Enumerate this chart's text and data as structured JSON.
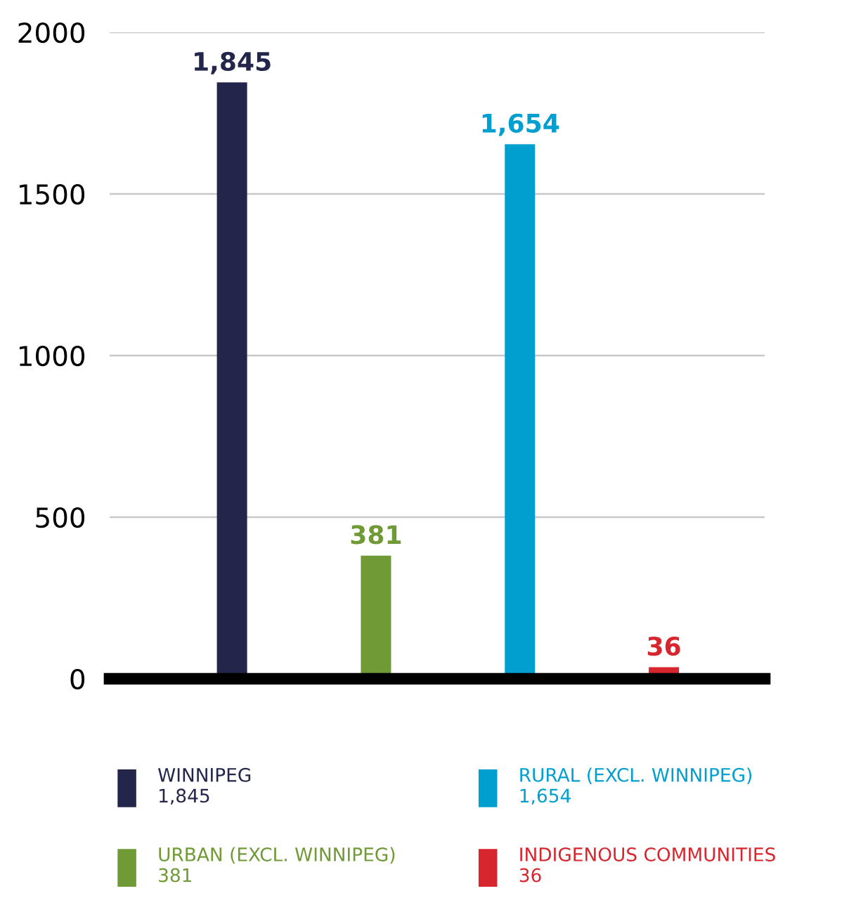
{
  "chart_data": {
    "type": "bar",
    "categories": [
      null,
      null,
      null,
      null
    ],
    "series": [
      {
        "name": "WINNIPEG",
        "color": "#23264a",
        "values": [
          1845,
          null,
          null,
          null
        ],
        "value_labels": [
          "1,845",
          null,
          null,
          null
        ]
      },
      {
        "name": "URBAN (EXCL. WINNIPEG)",
        "color": "#6f9a35",
        "values": [
          null,
          381,
          null,
          null
        ],
        "value_labels": [
          null,
          "381",
          null,
          null
        ]
      },
      {
        "name": "RURAL (EXCL. WINNIPEG)",
        "color": "#009fcf",
        "values": [
          null,
          null,
          1654,
          null
        ],
        "value_labels": [
          null,
          null,
          "1,654",
          null
        ]
      },
      {
        "name": "INDIGENOUS COMMUNITIES",
        "color": "#d7262d",
        "values": [
          null,
          null,
          null,
          36
        ],
        "value_labels": [
          null,
          null,
          null,
          "36"
        ]
      }
    ],
    "ylim": [
      0,
      2000
    ],
    "yticks": [
      0,
      500,
      1000,
      1500,
      2000
    ],
    "grid": "y",
    "legend": "bottom"
  }
}
